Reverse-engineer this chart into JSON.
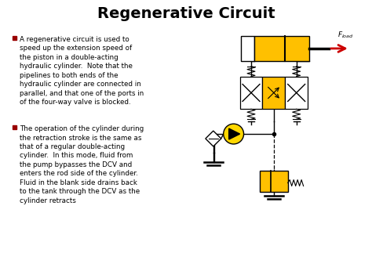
{
  "title": "Regenerative Circuit",
  "title_fontsize": 14,
  "title_fontweight": "bold",
  "bg_color": "#ffffff",
  "text_color": "#000000",
  "bullet1": "A regenerative circuit is used to\nspeed up the extension speed of\nthe piston in a double-acting\nhydraulic cylinder.  Note that the\npipelines to both ends of the\nhydraulic cylinder are connected in\nparallel, and that one of the ports in\nof the four-way valve is blocked.",
  "bullet2": "The operation of the cylinder during\nthe retraction stroke is the same as\nthat of a regular double-acting\ncylinder.  In this mode, fluid from\nthe pump bypasses the DCV and\nenters the rod side of the cylinder.\nFluid in the blank side drains back\nto the tank through the DCV as the\ncylinder retracts",
  "gold_color": "#FFC000",
  "red_color": "#CC0000",
  "dark_color": "#000000",
  "bullet_color": "#990000",
  "gray_color": "#888888"
}
